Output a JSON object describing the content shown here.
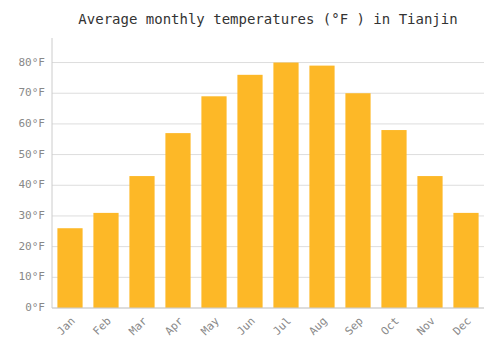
{
  "chart_data": {
    "type": "bar",
    "title": "Average monthly temperatures (°F ) in Tianjin",
    "categories": [
      "Jan",
      "Feb",
      "Mar",
      "Apr",
      "May",
      "Jun",
      "Jul",
      "Aug",
      "Sep",
      "Oct",
      "Nov",
      "Dec"
    ],
    "values": [
      26,
      31,
      43,
      57,
      69,
      76,
      80,
      79,
      70,
      58,
      43,
      31
    ],
    "color": "#FDB827",
    "ylim": [
      0,
      88
    ],
    "yticks": [
      {
        "value": 0,
        "label": "0°F"
      },
      {
        "value": 10,
        "label": "10°F"
      },
      {
        "value": 20,
        "label": "20°F"
      },
      {
        "value": 30,
        "label": "30°F"
      },
      {
        "value": 40,
        "label": "40°F"
      },
      {
        "value": 50,
        "label": "50°F"
      },
      {
        "value": 60,
        "label": "60°F"
      },
      {
        "value": 70,
        "label": "70°F"
      },
      {
        "value": 80,
        "label": "80°F"
      }
    ],
    "grid": true
  }
}
